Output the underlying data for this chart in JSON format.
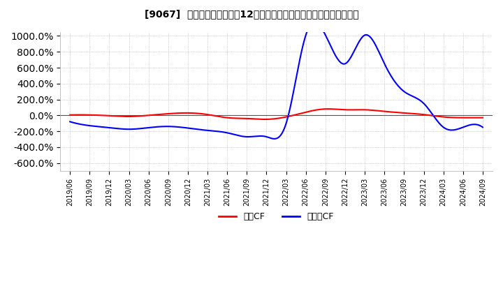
{
  "title": "[9067]  キャッシュフローの12か月移動合計の対前年同期増減率の推移",
  "ylim": [
    -700,
    1050
  ],
  "yticks": [
    -600,
    -400,
    -200,
    0,
    200,
    400,
    600,
    800,
    1000
  ],
  "legend_labels": [
    "営業CF",
    "フリーCF"
  ],
  "line_colors": [
    "#ff0000",
    "#0000ff"
  ],
  "background_color": "#ffffff",
  "x_labels": [
    "2019/06",
    "2019/09",
    "2019/12",
    "2020/03",
    "2020/06",
    "2020/09",
    "2020/12",
    "2021/03",
    "2021/06",
    "2021/09",
    "2021/12",
    "2022/03",
    "2022/06",
    "2022/09",
    "2022/12",
    "2023/03",
    "2023/06",
    "2023/09",
    "2023/12",
    "2024/03",
    "2024/06",
    "2024/09"
  ],
  "operating_cf": [
    5,
    5,
    -5,
    -15,
    0,
    20,
    30,
    10,
    -30,
    -40,
    -50,
    -20,
    40,
    80,
    70,
    70,
    50,
    30,
    10,
    -20,
    -30,
    -30
  ],
  "free_cf": [
    -80,
    -130,
    -155,
    -175,
    -155,
    -140,
    -160,
    -190,
    -220,
    -270,
    -270,
    -100,
    1010,
    1010,
    650,
    1010,
    650,
    300,
    150,
    -150,
    -150,
    -150
  ]
}
